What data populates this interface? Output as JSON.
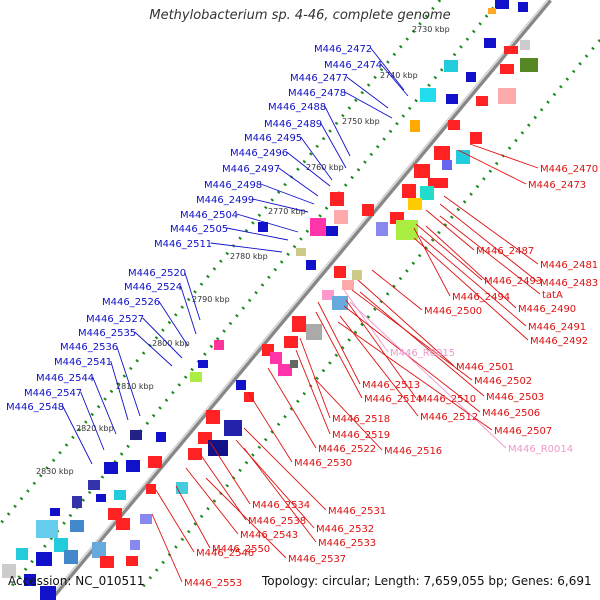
{
  "title": "Methylobacterium sp. 4-46, complete genome",
  "accession": "Accession: NC_010511",
  "topology": "Topology: circular; Length: 7,659,055 bp; Genes: 6,691",
  "colors": {
    "left_label": "#1010c8",
    "right_label": "#dd1111",
    "rna_label": "#ee99cc",
    "backbone": "#888888",
    "dotted_ring": "#1a8a1a"
  },
  "kbp_ticks": [
    "2730 kbp",
    "2740 kbp",
    "2750 kbp",
    "2760 kbp",
    "2770 kbp",
    "2780 kbp",
    "2790 kbp",
    "2800 kbp",
    "2810 kbp",
    "2820 kbp",
    "2830 kbp"
  ],
  "left_labels": [
    "M446_2472",
    "M446_2474",
    "M446_2477",
    "M446_2478",
    "M446_2488",
    "M446_2489",
    "M446_2495",
    "M446_2496",
    "M446_2497",
    "M446_2498",
    "M446_2499",
    "M446_2504",
    "M446_2505",
    "M446_2511",
    "M446_2520",
    "M446_2524",
    "M446_2526",
    "M446_2527",
    "M446_2535",
    "M446_2536",
    "M446_2541",
    "M446_2544",
    "M446_2547",
    "M446_2548"
  ],
  "right_labels": [
    "M446_2470",
    "M446_2473",
    "M446_2481",
    "M446_2487",
    "M446_2483",
    "tatA",
    "M446_2493",
    "M446_2490",
    "M446_2494",
    "M446_2500",
    "M446_2491",
    "M446_2492",
    "M446_R0015",
    "M446_2501",
    "M446_2502",
    "M446_2513",
    "M446_2503",
    "M446_2514",
    "M446_2510",
    "M446_2506",
    "M446_2518",
    "M446_2512",
    "M446_2507",
    "M446_2519",
    "M446_2522",
    "M446_R0014",
    "M446_2516",
    "M446_2530",
    "M446_2534",
    "M446_2531",
    "M446_2538",
    "M446_2532",
    "M446_2543",
    "M446_2533",
    "M446_2550",
    "M446_2546",
    "M446_2537",
    "M446_2553"
  ]
}
